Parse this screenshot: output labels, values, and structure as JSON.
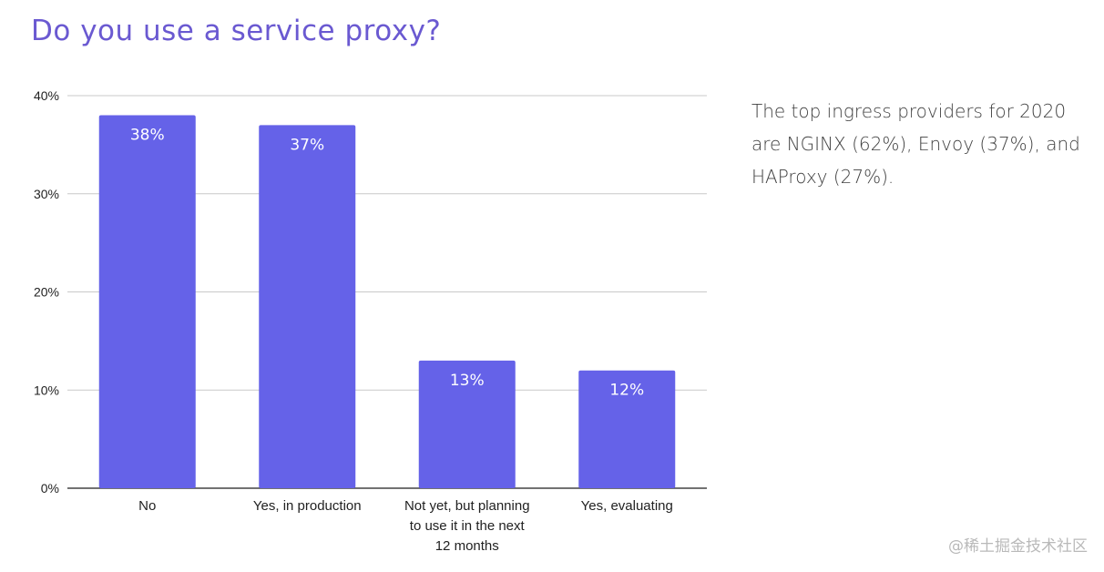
{
  "header": {
    "title": "Do you use a service proxy?"
  },
  "side_note": {
    "text": "The top ingress providers for 2020 are NGINX (62%), Envoy (37%), and HAProxy (27%)."
  },
  "watermark": {
    "text": "@稀土掘金技术社区"
  },
  "colors": {
    "title": "#6a59d1",
    "bar": "#6562e8",
    "grid": "#c9c9c9",
    "axis": "#444444"
  },
  "chart_data": {
    "type": "bar",
    "title": "Do you use a service proxy?",
    "categories": [
      "No",
      "Yes, in production",
      "Not yet, but planning to use it in the next 12 months",
      "Yes, evaluating"
    ],
    "category_lines": [
      [
        "No"
      ],
      [
        "Yes, in production"
      ],
      [
        "Not yet, but planning",
        "to use it in the next",
        "12 months"
      ],
      [
        "Yes, evaluating"
      ]
    ],
    "values": [
      38,
      37,
      13,
      12
    ],
    "data_labels": [
      "38%",
      "37%",
      "13%",
      "12%"
    ],
    "ylim": [
      0,
      40
    ],
    "yticks": [
      0,
      10,
      20,
      30,
      40
    ],
    "ytick_labels": [
      "0%",
      "10%",
      "20%",
      "30%",
      "40%"
    ],
    "xlabel": "",
    "ylabel": "",
    "grid": true,
    "legend": "none"
  }
}
